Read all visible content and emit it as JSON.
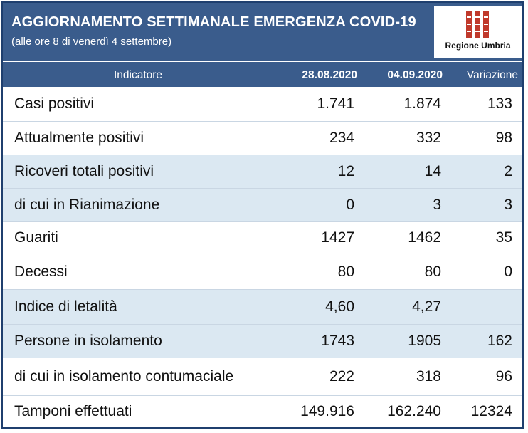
{
  "banner": {
    "title": "AGGIORNAMENTO SETTIMANALE EMERGENZA COVID-19",
    "subtitle": "(alle ore 8 di venerdì 4 settembre)"
  },
  "logo": {
    "text": "Regione Umbria",
    "color": "#c0392b"
  },
  "colors": {
    "header": "#3a5c8c",
    "shaded_row": "#dbe8f2"
  },
  "header": {
    "indicator": "Indicatore",
    "date1": "28.08.2020",
    "date2": "04.09.2020",
    "variation": "Variazione"
  },
  "rows": [
    {
      "name": "Casi positivi",
      "d1": "1.741",
      "d2": "1.874",
      "var": "133"
    },
    {
      "name": "Attualmente positivi",
      "d1": "234",
      "d2": "332",
      "var": "98"
    },
    {
      "name": "Ricoveri totali positivi",
      "d1": "12",
      "d2": "14",
      "var": "2"
    },
    {
      "name": "di cui in Rianimazione",
      "d1": "0",
      "d2": "3",
      "var": "3"
    },
    {
      "name": "Guariti",
      "d1": "1427",
      "d2": "1462",
      "var": "35"
    },
    {
      "name": "Decessi",
      "d1": "80",
      "d2": "80",
      "var": "0"
    },
    {
      "name": "Indice di letalità",
      "d1": "4,60",
      "d2": "4,27",
      "var": ""
    },
    {
      "name": "Persone in isolamento",
      "d1": "1743",
      "d2": "1905",
      "var": "162"
    },
    {
      "name": "di cui in isolamento contumaciale",
      "d1": "222",
      "d2": "318",
      "var": "96"
    },
    {
      "name": "Tamponi effettuati",
      "d1": "149.916",
      "d2": "162.240",
      "var": "12324"
    }
  ]
}
